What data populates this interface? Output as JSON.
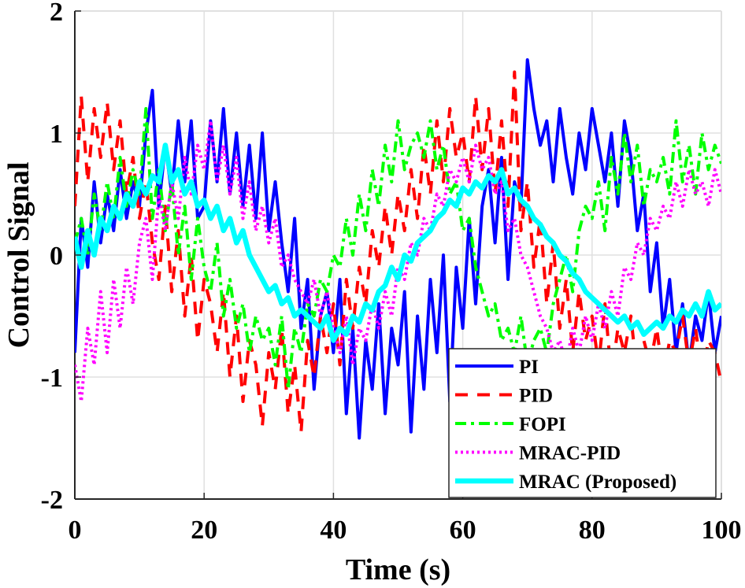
{
  "chart_data": {
    "type": "line",
    "title": "",
    "xlabel": "Time (s)",
    "ylabel": "Control Signal",
    "xlim": [
      0,
      100
    ],
    "ylim": [
      -2,
      2
    ],
    "xticks": [
      0,
      20,
      40,
      60,
      80,
      100
    ],
    "yticks": [
      -2,
      -1,
      0,
      1,
      2
    ],
    "xtick_labels": [
      "0",
      "20",
      "40",
      "60",
      "80",
      "100"
    ],
    "ytick_labels": [
      "-2",
      "-1",
      "0",
      "1",
      "2"
    ],
    "grid": true,
    "legend_position": "bottom-right",
    "x": [
      0,
      1,
      2,
      3,
      4,
      5,
      6,
      7,
      8,
      9,
      10,
      11,
      12,
      13,
      14,
      15,
      16,
      17,
      18,
      19,
      20,
      21,
      22,
      23,
      24,
      25,
      26,
      27,
      28,
      29,
      30,
      31,
      32,
      33,
      34,
      35,
      36,
      37,
      38,
      39,
      40,
      41,
      42,
      43,
      44,
      45,
      46,
      47,
      48,
      49,
      50,
      51,
      52,
      53,
      54,
      55,
      56,
      57,
      58,
      59,
      60,
      61,
      62,
      63,
      64,
      65,
      66,
      67,
      68,
      69,
      70,
      71,
      72,
      73,
      74,
      75,
      76,
      77,
      78,
      79,
      80,
      81,
      82,
      83,
      84,
      85,
      86,
      87,
      88,
      89,
      90,
      91,
      92,
      93,
      94,
      95,
      96,
      97,
      98,
      99,
      100
    ],
    "series": [
      {
        "name": "PI",
        "color": "#0000ff",
        "style": "solid",
        "values": [
          -0.8,
          0.3,
          -0.1,
          0.6,
          0.1,
          0.5,
          0.2,
          0.7,
          0.3,
          0.6,
          0.4,
          1.0,
          1.35,
          0.4,
          0.9,
          0.5,
          1.1,
          0.6,
          1.1,
          0.3,
          0.4,
          1.1,
          0.6,
          1.2,
          0.5,
          1.0,
          0.4,
          0.9,
          0.3,
          1.0,
          0.2,
          0.6,
          0.1,
          -0.3,
          0.3,
          -0.6,
          -0.2,
          -1.1,
          -0.5,
          -0.3,
          -0.8,
          -0.2,
          -1.3,
          -0.6,
          -1.5,
          -0.7,
          -1.1,
          -0.4,
          -1.3,
          -0.6,
          -0.9,
          -0.3,
          -1.45,
          -0.5,
          -1.1,
          -0.2,
          -0.8,
          0.0,
          -1.2,
          -0.1,
          -0.6,
          0.3,
          -0.4,
          0.4,
          0.7,
          0.1,
          0.8,
          -0.2,
          0.6,
          0.4,
          1.6,
          1.2,
          0.9,
          1.1,
          0.6,
          1.2,
          0.8,
          0.5,
          1.0,
          0.7,
          1.2,
          0.9,
          0.6,
          1.0,
          0.4,
          1.1,
          0.8,
          0.2,
          0.5,
          -0.3,
          0.1,
          -0.6,
          -0.2,
          -0.8,
          -0.4,
          -0.9,
          -0.5,
          -0.7,
          -0.3,
          -0.8,
          -0.5
        ]
      },
      {
        "name": "PID",
        "color": "#ff0000",
        "style": "dashed",
        "values": [
          0.4,
          1.3,
          0.6,
          1.2,
          0.8,
          1.25,
          0.7,
          1.1,
          0.5,
          0.8,
          0.3,
          0.6,
          0.1,
          -0.2,
          0.4,
          -0.3,
          0.2,
          -0.5,
          0.0,
          -0.7,
          -0.2,
          -0.4,
          -0.8,
          -0.3,
          -1.0,
          -0.5,
          -1.2,
          -0.7,
          -0.9,
          -1.4,
          -0.8,
          -1.1,
          -0.6,
          -1.3,
          -0.9,
          -1.45,
          -0.7,
          -1.0,
          -0.5,
          -0.8,
          -0.4,
          -0.9,
          -0.2,
          -0.6,
          -0.1,
          -0.4,
          0.2,
          -0.1,
          0.4,
          0.0,
          0.5,
          0.2,
          0.7,
          0.3,
          0.9,
          0.5,
          1.1,
          0.6,
          1.2,
          0.8,
          1.0,
          0.6,
          1.3,
          0.7,
          1.2,
          0.5,
          1.1,
          0.4,
          1.5,
          0.2,
          0.6,
          -0.1,
          0.3,
          -0.4,
          0.1,
          -0.6,
          -0.2,
          -0.8,
          -0.3,
          -0.7,
          -0.5,
          -0.9,
          -0.4,
          -1.0,
          -0.6,
          -0.8,
          -0.5,
          -1.0,
          -0.7,
          -0.9,
          -0.6,
          -1.0,
          -0.7,
          -0.8,
          -0.5,
          -0.9,
          -0.6,
          -1.0,
          -0.7,
          -0.8,
          -1.05
        ]
      },
      {
        "name": "FOPI",
        "color": "#00ff00",
        "style": "dashdot",
        "values": [
          0.1,
          0.3,
          0.0,
          0.5,
          0.2,
          0.6,
          0.3,
          0.8,
          0.4,
          0.7,
          0.5,
          1.2,
          0.3,
          0.7,
          0.2,
          0.6,
          0.0,
          0.4,
          -0.2,
          0.3,
          -0.1,
          -0.3,
          0.1,
          -0.5,
          -0.2,
          -0.6,
          -0.4,
          -0.8,
          -0.5,
          -0.7,
          -0.6,
          -0.9,
          -0.5,
          -1.1,
          -0.6,
          -0.8,
          -0.4,
          -0.5,
          -0.2,
          -0.3,
          0.0,
          -0.1,
          0.3,
          0.0,
          0.5,
          0.2,
          0.7,
          0.4,
          0.9,
          0.6,
          1.1,
          0.7,
          0.9,
          1.0,
          0.8,
          1.1,
          0.7,
          0.9,
          0.5,
          0.6,
          0.2,
          0.3,
          -0.1,
          -0.3,
          -0.5,
          -0.4,
          -0.7,
          -0.6,
          -0.8,
          -0.5,
          -0.9,
          -0.7,
          -0.6,
          -0.8,
          -0.4,
          -0.2,
          0.0,
          -0.3,
          0.2,
          0.4,
          0.3,
          0.6,
          0.2,
          0.8,
          0.5,
          1.0,
          0.6,
          0.9,
          0.4,
          0.7,
          0.6,
          0.8,
          0.5,
          1.1,
          0.6,
          0.9,
          0.5,
          1.0,
          0.7,
          0.9,
          0.75
        ]
      },
      {
        "name": "MRAC-PID",
        "color": "#ff00ff",
        "style": "dotted",
        "values": [
          -0.9,
          -1.2,
          -0.6,
          -0.9,
          -0.3,
          -0.8,
          -0.2,
          -0.6,
          -0.1,
          -0.4,
          0.1,
          0.3,
          -0.2,
          0.5,
          0.2,
          0.6,
          0.3,
          0.8,
          0.5,
          0.9,
          0.7,
          1.1,
          0.6,
          0.9,
          0.5,
          0.8,
          0.3,
          0.6,
          0.2,
          0.4,
          0.1,
          0.3,
          -0.1,
          0.0,
          -0.2,
          -0.3,
          -0.4,
          -0.2,
          -0.5,
          -0.3,
          -0.6,
          -0.8,
          -0.5,
          -0.9,
          -0.6,
          -0.7,
          -0.4,
          -0.6,
          -0.3,
          -0.5,
          -0.1,
          -0.2,
          0.1,
          0.0,
          0.3,
          0.2,
          0.5,
          0.4,
          0.7,
          0.6,
          0.8,
          0.6,
          0.9,
          0.7,
          0.8,
          0.5,
          0.6,
          0.2,
          0.3,
          0.0,
          -0.1,
          -0.3,
          -0.5,
          -0.6,
          -0.8,
          -0.7,
          -0.9,
          -0.6,
          -0.8,
          -0.5,
          -0.7,
          -0.4,
          -0.6,
          -0.3,
          -0.5,
          -0.1,
          -0.2,
          0.1,
          0.0,
          0.3,
          0.2,
          0.4,
          0.3,
          0.6,
          0.4,
          0.7,
          0.5,
          0.6,
          0.4,
          0.7,
          0.5
        ]
      },
      {
        "name": "MRAC (Proposed)",
        "color": "#00ffff",
        "style": "solid-thick",
        "values": [
          0.15,
          -0.1,
          0.2,
          0.0,
          0.3,
          0.2,
          0.4,
          0.3,
          0.5,
          0.4,
          0.6,
          0.5,
          0.65,
          0.6,
          0.9,
          0.6,
          0.7,
          0.5,
          0.6,
          0.4,
          0.45,
          0.3,
          0.4,
          0.2,
          0.3,
          0.1,
          0.2,
          0.0,
          -0.1,
          -0.2,
          -0.3,
          -0.25,
          -0.4,
          -0.35,
          -0.5,
          -0.45,
          -0.5,
          -0.55,
          -0.6,
          -0.5,
          -0.7,
          -0.6,
          -0.65,
          -0.5,
          -0.55,
          -0.4,
          -0.45,
          -0.3,
          -0.25,
          -0.1,
          -0.2,
          0.0,
          -0.05,
          0.1,
          0.15,
          0.2,
          0.3,
          0.35,
          0.45,
          0.4,
          0.55,
          0.5,
          0.6,
          0.55,
          0.65,
          0.6,
          0.7,
          0.5,
          0.55,
          0.45,
          0.4,
          0.3,
          0.25,
          0.15,
          0.1,
          0.0,
          -0.05,
          -0.15,
          -0.2,
          -0.3,
          -0.35,
          -0.4,
          -0.45,
          -0.5,
          -0.55,
          -0.5,
          -0.6,
          -0.55,
          -0.65,
          -0.6,
          -0.55,
          -0.6,
          -0.5,
          -0.55,
          -0.45,
          -0.5,
          -0.4,
          -0.5,
          -0.3,
          -0.45,
          -0.4
        ]
      }
    ]
  }
}
